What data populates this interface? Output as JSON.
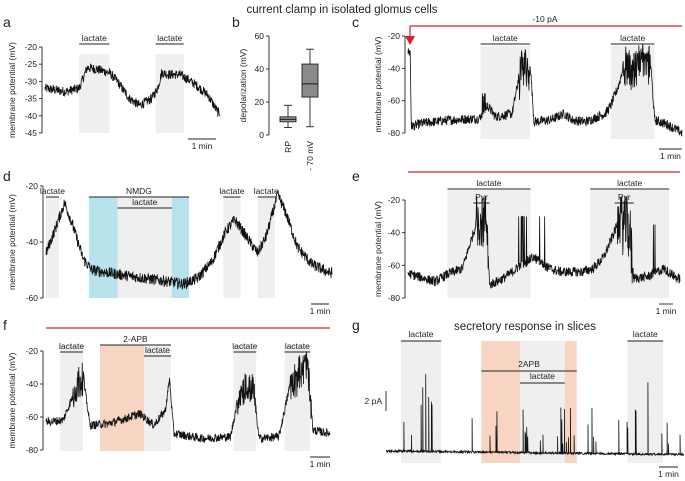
{
  "figure": {
    "title_top": "current clamp in isolated glomus cells",
    "title_g": "secretory response in slices"
  },
  "colors": {
    "shade_gray": "#efefef",
    "shade_blue": "#b7e3ec",
    "shade_tan": "#e0c994",
    "shade_peach": "#f8d5c2",
    "red": "#d61f2a",
    "box_fill": "#8a8a8a",
    "trace": "#111111"
  },
  "chart_data": [
    {
      "id": "a",
      "type": "line",
      "panel_label": "a",
      "ylabel": "membrane potential (mV)",
      "ylim": [
        -45,
        -20
      ],
      "yticks": [
        "-20",
        "-25",
        "-30",
        "-35",
        "-40",
        "-45"
      ],
      "xlim": [
        0,
        8.7
      ],
      "scalebar": "1 min",
      "segments": [
        {
          "label": "lactate",
          "start": 1.7,
          "end": 3.2
        },
        {
          "label": "lactate",
          "start": 5.5,
          "end": 6.9
        }
      ],
      "trace": [
        [
          0,
          -32
        ],
        [
          1.0,
          -33
        ],
        [
          1.7,
          -32
        ],
        [
          2.1,
          -26
        ],
        [
          2.6,
          -26.5
        ],
        [
          3.2,
          -27.5
        ],
        [
          3.6,
          -30
        ],
        [
          4.2,
          -35
        ],
        [
          4.7,
          -37
        ],
        [
          5.3,
          -35
        ],
        [
          5.6,
          -32
        ],
        [
          5.8,
          -27.5
        ],
        [
          6.2,
          -28
        ],
        [
          6.7,
          -28
        ],
        [
          7.0,
          -29
        ],
        [
          7.5,
          -31
        ],
        [
          8.1,
          -34
        ],
        [
          8.6,
          -39
        ]
      ],
      "noise": 1.4
    },
    {
      "id": "b",
      "type": "box",
      "panel_label": "b",
      "ylabel": "depolarization (mV)",
      "ylim": [
        0,
        60
      ],
      "yticks": [
        "0",
        "20",
        "40",
        "60"
      ],
      "categories": [
        "RP",
        "- 70 mV"
      ],
      "boxes": [
        {
          "min": 4.5,
          "q1": 8,
          "median": 9.5,
          "q3": 11,
          "max": 18
        },
        {
          "min": 5,
          "q1": 23,
          "median": 31,
          "q3": 43,
          "max": 52
        }
      ]
    },
    {
      "id": "c",
      "type": "line",
      "panel_label": "c",
      "ylabel": "membrane potential (mV)",
      "ylim": [
        -80,
        -20
      ],
      "yticks": [
        "-20",
        "-40",
        "-60",
        "-80"
      ],
      "xlim": [
        0,
        10
      ],
      "scalebar": "1 min",
      "annotation": "-10 pA",
      "segments": [
        {
          "label": "lactate",
          "start": 2.65,
          "end": 4.45
        },
        {
          "label": "lactate",
          "start": 7.4,
          "end": 9.0
        }
      ],
      "trace": [
        [
          0,
          -30
        ],
        [
          0.08,
          -30
        ],
        [
          0.12,
          -76
        ],
        [
          0.5,
          -74
        ],
        [
          1.5,
          -72
        ],
        [
          2.6,
          -71
        ],
        [
          2.9,
          -63
        ],
        [
          3.2,
          -70
        ],
        [
          3.8,
          -68
        ],
        [
          4.0,
          -50
        ],
        [
          4.1,
          -36
        ],
        [
          4.45,
          -35
        ],
        [
          4.6,
          -73
        ],
        [
          5.2,
          -72
        ],
        [
          5.7,
          -68
        ],
        [
          6.0,
          -72
        ],
        [
          6.5,
          -73
        ],
        [
          7.2,
          -68
        ],
        [
          7.4,
          -63
        ],
        [
          7.7,
          -50
        ],
        [
          7.9,
          -36
        ],
        [
          8.85,
          -35
        ],
        [
          9.0,
          -72
        ],
        [
          9.5,
          -75
        ],
        [
          10,
          -80
        ]
      ],
      "noise": 3
    },
    {
      "id": "d",
      "type": "line",
      "panel_label": "d",
      "ylabel": "membrane potential (mV)",
      "ylim": [
        -60,
        -20
      ],
      "yticks": [
        "-20",
        "-40",
        "-60"
      ],
      "xlim": [
        0,
        10
      ],
      "scalebar": "1 min",
      "segments": [
        {
          "label": "lactate",
          "start": 0.0,
          "end": 0.45
        },
        {
          "label": "NMDG",
          "start": 1.5,
          "end": 5.0
        },
        {
          "label": "lactate",
          "start": 2.5,
          "end": 4.4
        },
        {
          "label": "lactate",
          "start": 6.2,
          "end": 6.8
        },
        {
          "label": "lactate",
          "start": 7.4,
          "end": 8.0
        }
      ],
      "trace": [
        [
          0,
          -44
        ],
        [
          0.3,
          -36
        ],
        [
          0.65,
          -26
        ],
        [
          0.9,
          -33
        ],
        [
          1.3,
          -46
        ],
        [
          1.6,
          -50
        ],
        [
          2.2,
          -51
        ],
        [
          2.8,
          -52
        ],
        [
          3.5,
          -53
        ],
        [
          4.2,
          -54
        ],
        [
          4.8,
          -55
        ],
        [
          5.3,
          -53
        ],
        [
          5.8,
          -47
        ],
        [
          6.3,
          -36
        ],
        [
          6.6,
          -32
        ],
        [
          7.0,
          -38
        ],
        [
          7.4,
          -44
        ],
        [
          7.7,
          -38
        ],
        [
          8.1,
          -23
        ],
        [
          8.4,
          -30
        ],
        [
          8.8,
          -42
        ],
        [
          9.3,
          -48
        ],
        [
          9.9,
          -51
        ]
      ],
      "noise": 2
    },
    {
      "id": "e",
      "type": "line",
      "panel_label": "e",
      "ylabel": "membrane potential (mV)",
      "ylim": [
        -80,
        -20
      ],
      "yticks": [
        "-20",
        "-40",
        "-60",
        "-80"
      ],
      "xlim": [
        0,
        10
      ],
      "scalebar": "1 min",
      "segments": [
        {
          "label": "lactate",
          "start": 1.45,
          "end": 4.5
        },
        {
          "label": "Pyr",
          "start": 2.4,
          "end": 3.0
        },
        {
          "label": "lactate",
          "start": 6.7,
          "end": 9.6
        },
        {
          "label": "Pyr",
          "start": 7.6,
          "end": 8.3
        }
      ],
      "trace": [
        [
          0,
          -65
        ],
        [
          1.0,
          -70
        ],
        [
          1.5,
          -65
        ],
        [
          2.0,
          -62
        ],
        [
          2.5,
          -35
        ],
        [
          2.9,
          -36
        ],
        [
          3.0,
          -72
        ],
        [
          3.5,
          -68
        ],
        [
          4.0,
          -62
        ],
        [
          4.6,
          -55
        ],
        [
          5.2,
          -62
        ],
        [
          5.6,
          -64
        ],
        [
          6.4,
          -64
        ],
        [
          6.8,
          -62
        ],
        [
          7.2,
          -55
        ],
        [
          7.7,
          -35
        ],
        [
          8.1,
          -38
        ],
        [
          8.3,
          -68
        ],
        [
          8.8,
          -67
        ],
        [
          9.4,
          -62
        ],
        [
          9.9,
          -68
        ]
      ],
      "noise": 3
    },
    {
      "id": "f",
      "type": "line",
      "panel_label": "f",
      "ylabel": "membrane potential (mV)",
      "ylim": [
        -80,
        -20
      ],
      "yticks": [
        "-20",
        "-40",
        "-60",
        "-80"
      ],
      "xlim": [
        0,
        10
      ],
      "scalebar": "1 min",
      "segments": [
        {
          "label": "lactate",
          "start": 0.5,
          "end": 1.3
        },
        {
          "label": "2-APB",
          "start": 1.9,
          "end": 4.4
        },
        {
          "label": "lactate",
          "start": 3.45,
          "end": 4.4
        },
        {
          "label": "lactate",
          "start": 6.6,
          "end": 7.4
        },
        {
          "label": "lactate",
          "start": 8.4,
          "end": 9.3
        }
      ],
      "trace": [
        [
          0,
          -63
        ],
        [
          0.6,
          -62
        ],
        [
          1.0,
          -45
        ],
        [
          1.3,
          -35
        ],
        [
          1.55,
          -65
        ],
        [
          2.2,
          -64
        ],
        [
          2.8,
          -61
        ],
        [
          3.3,
          -58
        ],
        [
          3.8,
          -65
        ],
        [
          4.2,
          -56
        ],
        [
          4.35,
          -37
        ],
        [
          4.5,
          -70
        ],
        [
          5.5,
          -73
        ],
        [
          6.5,
          -72
        ],
        [
          6.8,
          -45
        ],
        [
          7.3,
          -42
        ],
        [
          7.5,
          -73
        ],
        [
          8.2,
          -72
        ],
        [
          8.6,
          -40
        ],
        [
          9.2,
          -28
        ],
        [
          9.4,
          -68
        ],
        [
          10,
          -70
        ]
      ],
      "noise": 2.6
    },
    {
      "id": "g",
      "type": "line",
      "panel_label": "g",
      "ylabel": "",
      "scalebar": "1 min",
      "scalebar_y": "2 pA",
      "xlim": [
        0,
        10
      ],
      "segments": [
        {
          "label": "lactate",
          "start": 0.5,
          "end": 1.85
        },
        {
          "label": "2APB",
          "start": 3.2,
          "end": 6.4
        },
        {
          "label": "lactate",
          "start": 4.5,
          "end": 6.0
        },
        {
          "label": "lactate",
          "start": 8.1,
          "end": 9.3
        }
      ],
      "baseline": 0
    }
  ]
}
